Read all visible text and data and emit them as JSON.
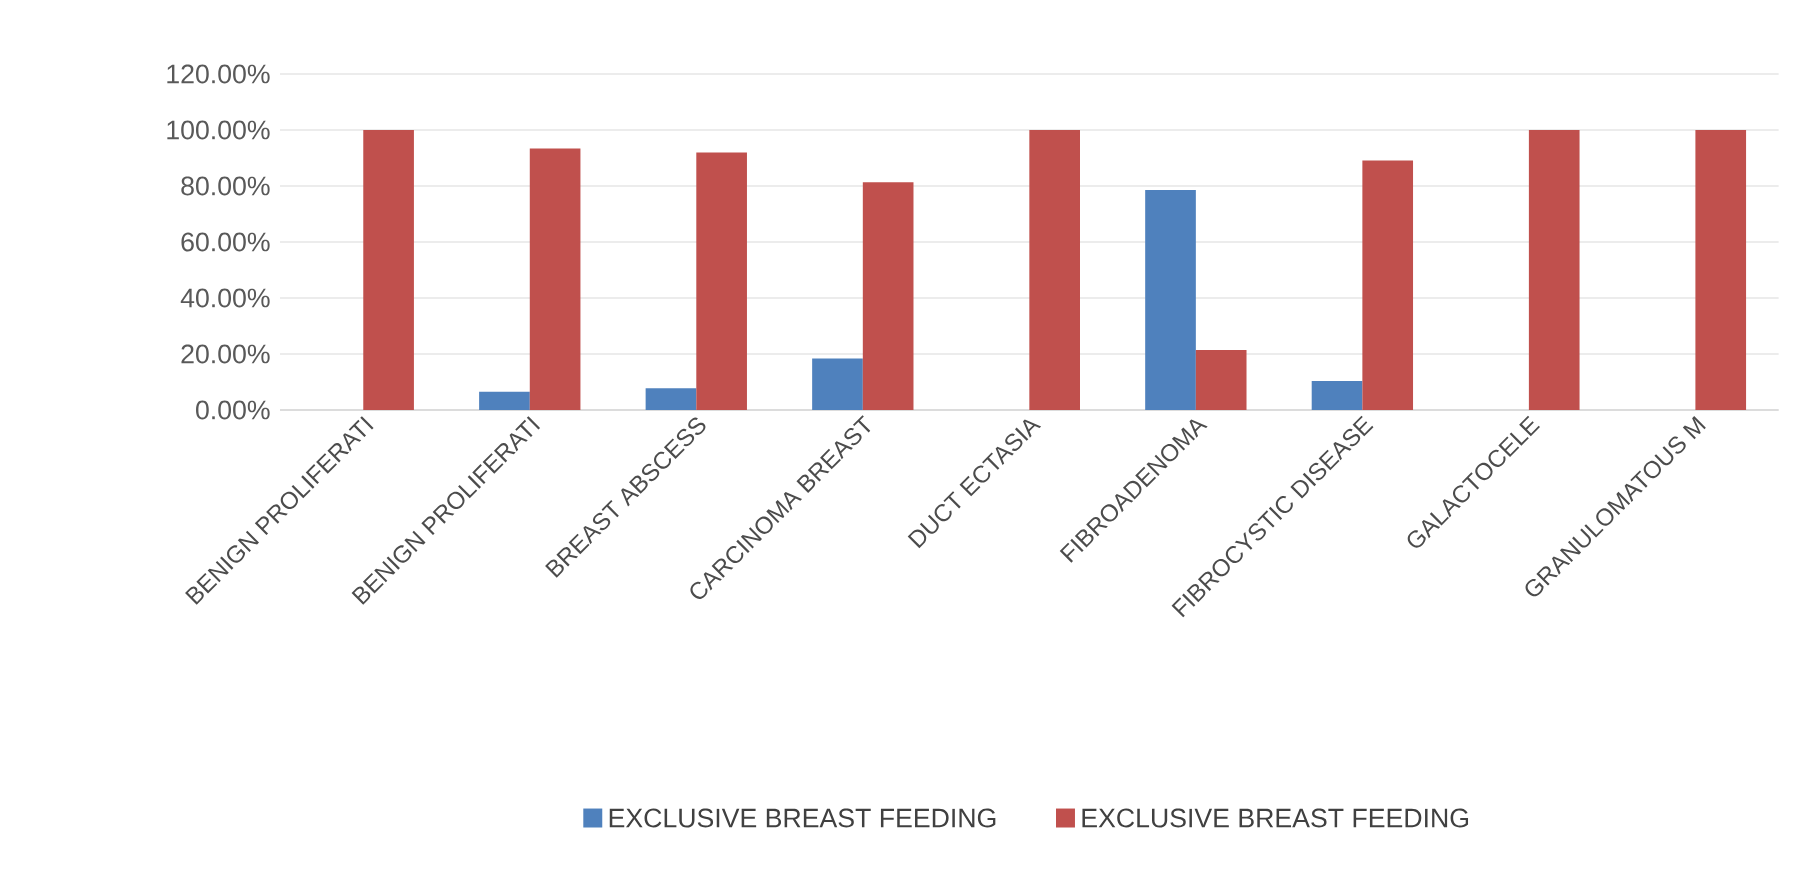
{
  "chart_data": {
    "type": "bar",
    "categories": [
      "BENIGN PROLIFERATI",
      "BENIGN PROLIFERATI",
      "BREAST ABSCESS",
      "CARCINOMA BREAST",
      "DUCT ECTASIA",
      "FIBROADENOMA",
      "FIBROCYSTIC DISEASE",
      "GALACTOCELE",
      "GRANULOMATOUS M"
    ],
    "series": [
      {
        "name": "EXCLUSIVE BREAST FEEDING",
        "color": "#4f81bd",
        "values": [
          0,
          6.5,
          7.8,
          18.4,
          0,
          78.6,
          10.4,
          0,
          0
        ]
      },
      {
        "name": "EXCLUSIVE BREAST FEEDING",
        "color": "#c0504d",
        "values": [
          100,
          93.4,
          92,
          81.3,
          100,
          21.4,
          89.1,
          100,
          100
        ]
      }
    ],
    "ylim": [
      0,
      120
    ],
    "yticks": [
      {
        "value": 0,
        "label": "0.00%"
      },
      {
        "value": 20,
        "label": "20.00%"
      },
      {
        "value": 40,
        "label": "40.00%"
      },
      {
        "value": 60,
        "label": "60.00%"
      },
      {
        "value": 80,
        "label": "80.00%"
      },
      {
        "value": 100,
        "label": "100.00%"
      },
      {
        "value": 120,
        "label": "120.00%"
      }
    ],
    "grid": "y",
    "legend": "bottom"
  }
}
